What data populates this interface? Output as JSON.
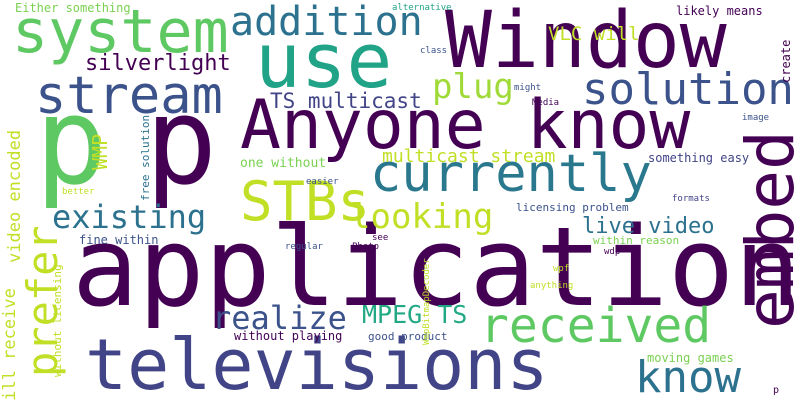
{
  "words": [
    {
      "text": "application",
      "color": "#440154",
      "rotated": false
    },
    {
      "text": "televisions",
      "color": "#414487",
      "rotated": false
    },
    {
      "text": "Anyone know",
      "color": "#440154",
      "rotated": false
    },
    {
      "text": "Window",
      "color": "#440154",
      "rotated": false
    },
    {
      "text": "embed",
      "color": "#440154",
      "rotated": true
    },
    {
      "text": "use",
      "color": "#20a386",
      "rotated": false
    },
    {
      "text": "p",
      "color": "#5ec962",
      "rotated": false
    },
    {
      "text": "p",
      "color": "#440154",
      "rotated": false
    },
    {
      "text": "currently",
      "color": "#2a788e",
      "rotated": false
    },
    {
      "text": "system",
      "color": "#5ec962",
      "rotated": false
    },
    {
      "text": "stream",
      "color": "#3b528b",
      "rotated": false
    },
    {
      "text": "received",
      "color": "#5ec962",
      "rotated": false
    },
    {
      "text": "STBs",
      "color": "#c0df25",
      "rotated": false
    },
    {
      "text": "solution",
      "color": "#3b528b",
      "rotated": false
    },
    {
      "text": "addition",
      "color": "#2c728e",
      "rotated": false
    },
    {
      "text": "prefer",
      "color": "#c0df25",
      "rotated": true
    },
    {
      "text": "know",
      "color": "#2c728e",
      "rotated": false
    },
    {
      "text": "existing",
      "color": "#2c728e",
      "rotated": false
    },
    {
      "text": "looking",
      "color": "#c0df25",
      "rotated": false
    },
    {
      "text": "plug",
      "color": "#a0da39",
      "rotated": false
    },
    {
      "text": "realize",
      "color": "#3b528b",
      "rotated": false
    },
    {
      "text": "MPEG TS",
      "color": "#22a884",
      "rotated": false
    },
    {
      "text": "silverlight",
      "color": "#440154",
      "rotated": false
    },
    {
      "text": "live video",
      "color": "#2c728e",
      "rotated": false
    },
    {
      "text": "TS multicast",
      "color": "#414487",
      "rotated": false
    },
    {
      "text": "multicast stream",
      "color": "#c0df25",
      "rotated": false
    },
    {
      "text": "VLC will",
      "color": "#c0df25",
      "rotated": false
    },
    {
      "text": "WMP",
      "color": "#c0df25",
      "rotated": true
    },
    {
      "text": "video encoded",
      "color": "#c0df25",
      "rotated": true
    },
    {
      "text": "will receive",
      "color": "#c0df25",
      "rotated": true
    },
    {
      "text": "create",
      "color": "#440154",
      "rotated": true
    },
    {
      "text": "likely means",
      "color": "#440154",
      "rotated": false
    },
    {
      "text": "Either something",
      "color": "#7ad151",
      "rotated": false
    },
    {
      "text": "one without",
      "color": "#7ad151",
      "rotated": false
    },
    {
      "text": "something easy",
      "color": "#414487",
      "rotated": false
    },
    {
      "text": "licensing problem",
      "color": "#3b528b",
      "rotated": false
    },
    {
      "text": "moving games",
      "color": "#7ad151",
      "rotated": false
    },
    {
      "text": "good product",
      "color": "#3b528b",
      "rotated": false
    },
    {
      "text": "without playing",
      "color": "#440154",
      "rotated": false
    },
    {
      "text": "fine within",
      "color": "#3b528b",
      "rotated": false
    },
    {
      "text": "within reason",
      "color": "#7ad151",
      "rotated": false
    },
    {
      "text": "free solution",
      "color": "#2c728e",
      "rotated": true
    },
    {
      "text": "without licensing",
      "color": "#c0df25",
      "rotated": true
    },
    {
      "text": "alternative",
      "color": "#20a386",
      "rotated": false
    },
    {
      "text": "class",
      "color": "#3b528b",
      "rotated": false
    },
    {
      "text": "might",
      "color": "#3b528b",
      "rotated": false
    },
    {
      "text": "Media",
      "color": "#440154",
      "rotated": false
    },
    {
      "text": "image",
      "color": "#3b528b",
      "rotated": false
    },
    {
      "text": "easier",
      "color": "#3b528b",
      "rotated": false
    },
    {
      "text": "better",
      "color": "#c0df25",
      "rotated": false
    },
    {
      "text": "formats",
      "color": "#414487",
      "rotated": false
    },
    {
      "text": "regular",
      "color": "#3b528b",
      "rotated": false
    },
    {
      "text": "see",
      "color": "#440154",
      "rotated": false
    },
    {
      "text": "Photo",
      "color": "#440154",
      "rotated": false
    },
    {
      "text": "WmpBitmapDecoder",
      "color": "#c0df25",
      "rotated": true
    },
    {
      "text": "wdp",
      "color": "#440154",
      "rotated": false
    },
    {
      "text": "wpf",
      "color": "#c0df25",
      "rotated": false
    },
    {
      "text": "anything",
      "color": "#c0df25",
      "rotated": false
    },
    {
      "text": "p",
      "color": "#440154",
      "rotated": false
    }
  ]
}
